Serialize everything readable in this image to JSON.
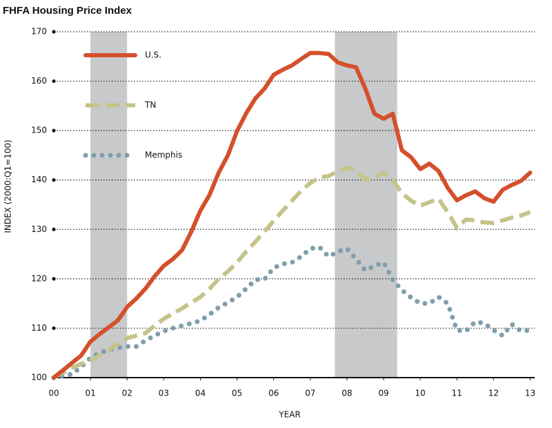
{
  "chart_data": {
    "type": "line",
    "title": "FHFA Housing Price Index",
    "x_label": "YEAR",
    "y_label": "INDEX (2000:Q1=100)",
    "x": [
      0,
      0.25,
      0.5,
      0.75,
      1,
      1.25,
      1.5,
      1.75,
      2,
      2.25,
      2.5,
      2.75,
      3,
      3.25,
      3.5,
      3.75,
      4,
      4.25,
      4.5,
      4.75,
      5,
      5.25,
      5.5,
      5.75,
      6,
      6.25,
      6.5,
      6.75,
      7,
      7.25,
      7.5,
      7.75,
      8,
      8.25,
      8.5,
      8.75,
      9,
      9.25,
      9.5,
      9.75,
      10,
      10.25,
      10.5,
      10.75,
      11,
      11.25,
      11.5,
      11.75,
      12,
      12.25,
      12.5,
      12.75,
      13
    ],
    "series": [
      {
        "name": "U.S.",
        "color": "#d4502b",
        "style": "solid",
        "values": [
          100,
          101.5,
          103,
          104.5,
          107.3,
          108.8,
          110.2,
          111.6,
          114.3,
          116,
          118,
          120.5,
          122.6,
          124,
          125.8,
          129.5,
          133.8,
          137,
          141.5,
          145,
          149.9,
          153.5,
          156.5,
          158.5,
          161.3,
          162.3,
          163.2,
          164.5,
          165.7,
          165.7,
          165.5,
          163.8,
          163.2,
          162.8,
          158.5,
          153.4,
          152.4,
          153.4,
          146,
          144.6,
          142.2,
          143.3,
          141.8,
          138.4,
          135.9,
          136.9,
          137.7,
          136.3,
          135.6,
          138,
          139,
          139.8,
          141.5
        ]
      },
      {
        "name": "TN",
        "color": "#c5c38a",
        "style": "dashed",
        "values": [
          100,
          101,
          102,
          102.8,
          103.5,
          104.5,
          105.6,
          106.8,
          108,
          108.5,
          109,
          110.5,
          111.9,
          113,
          114,
          115.2,
          116.3,
          118,
          120,
          121.5,
          123.3,
          125.5,
          127.5,
          129.6,
          131.7,
          133.8,
          135.8,
          137.8,
          139.4,
          140.5,
          140.8,
          141.8,
          142.5,
          141.8,
          140.1,
          140.5,
          141.5,
          140,
          137.3,
          135.8,
          134.8,
          135.5,
          136.2,
          133.5,
          130.3,
          132,
          131.8,
          131.4,
          131.3,
          131.8,
          132.4,
          132.8,
          133.5
        ]
      },
      {
        "name": "Memphis",
        "color": "#7f9eab",
        "style": "dotted",
        "values": [
          100,
          100.4,
          100.7,
          102.2,
          104,
          105,
          105.6,
          106,
          106.3,
          106.3,
          107.5,
          108.5,
          109.4,
          110,
          110.5,
          111,
          111.5,
          112.8,
          114.2,
          115.2,
          116.3,
          118,
          119.8,
          119.9,
          122.2,
          123,
          123.3,
          124.5,
          126.1,
          126.4,
          124.5,
          125.5,
          126.1,
          124,
          121.7,
          122.6,
          123.3,
          119.8,
          117.7,
          116.2,
          115,
          115,
          116.3,
          115,
          109.6,
          109.4,
          111.3,
          111,
          109.6,
          108.5,
          110.8,
          109.4,
          109.6
        ]
      }
    ],
    "shaded_periods": [
      [
        1,
        2
      ],
      [
        7.67,
        9.37
      ]
    ],
    "shade_color": "#c8c9cb",
    "xlim": [
      0,
      13.2
    ],
    "ylim": [
      100,
      170
    ],
    "xticks": [
      {
        "value": 0,
        "label": "00"
      },
      {
        "value": 1,
        "label": "01"
      },
      {
        "value": 2,
        "label": "02"
      },
      {
        "value": 3,
        "label": "03"
      },
      {
        "value": 4,
        "label": "04"
      },
      {
        "value": 5,
        "label": "05"
      },
      {
        "value": 6,
        "label": "06"
      },
      {
        "value": 7,
        "label": "07"
      },
      {
        "value": 8,
        "label": "08"
      },
      {
        "value": 9,
        "label": "09"
      },
      10,
      11,
      12,
      13
    ],
    "yticks": [
      100,
      110,
      120,
      130,
      140,
      150,
      160,
      170
    ],
    "grid": true,
    "legend": "upper left"
  }
}
